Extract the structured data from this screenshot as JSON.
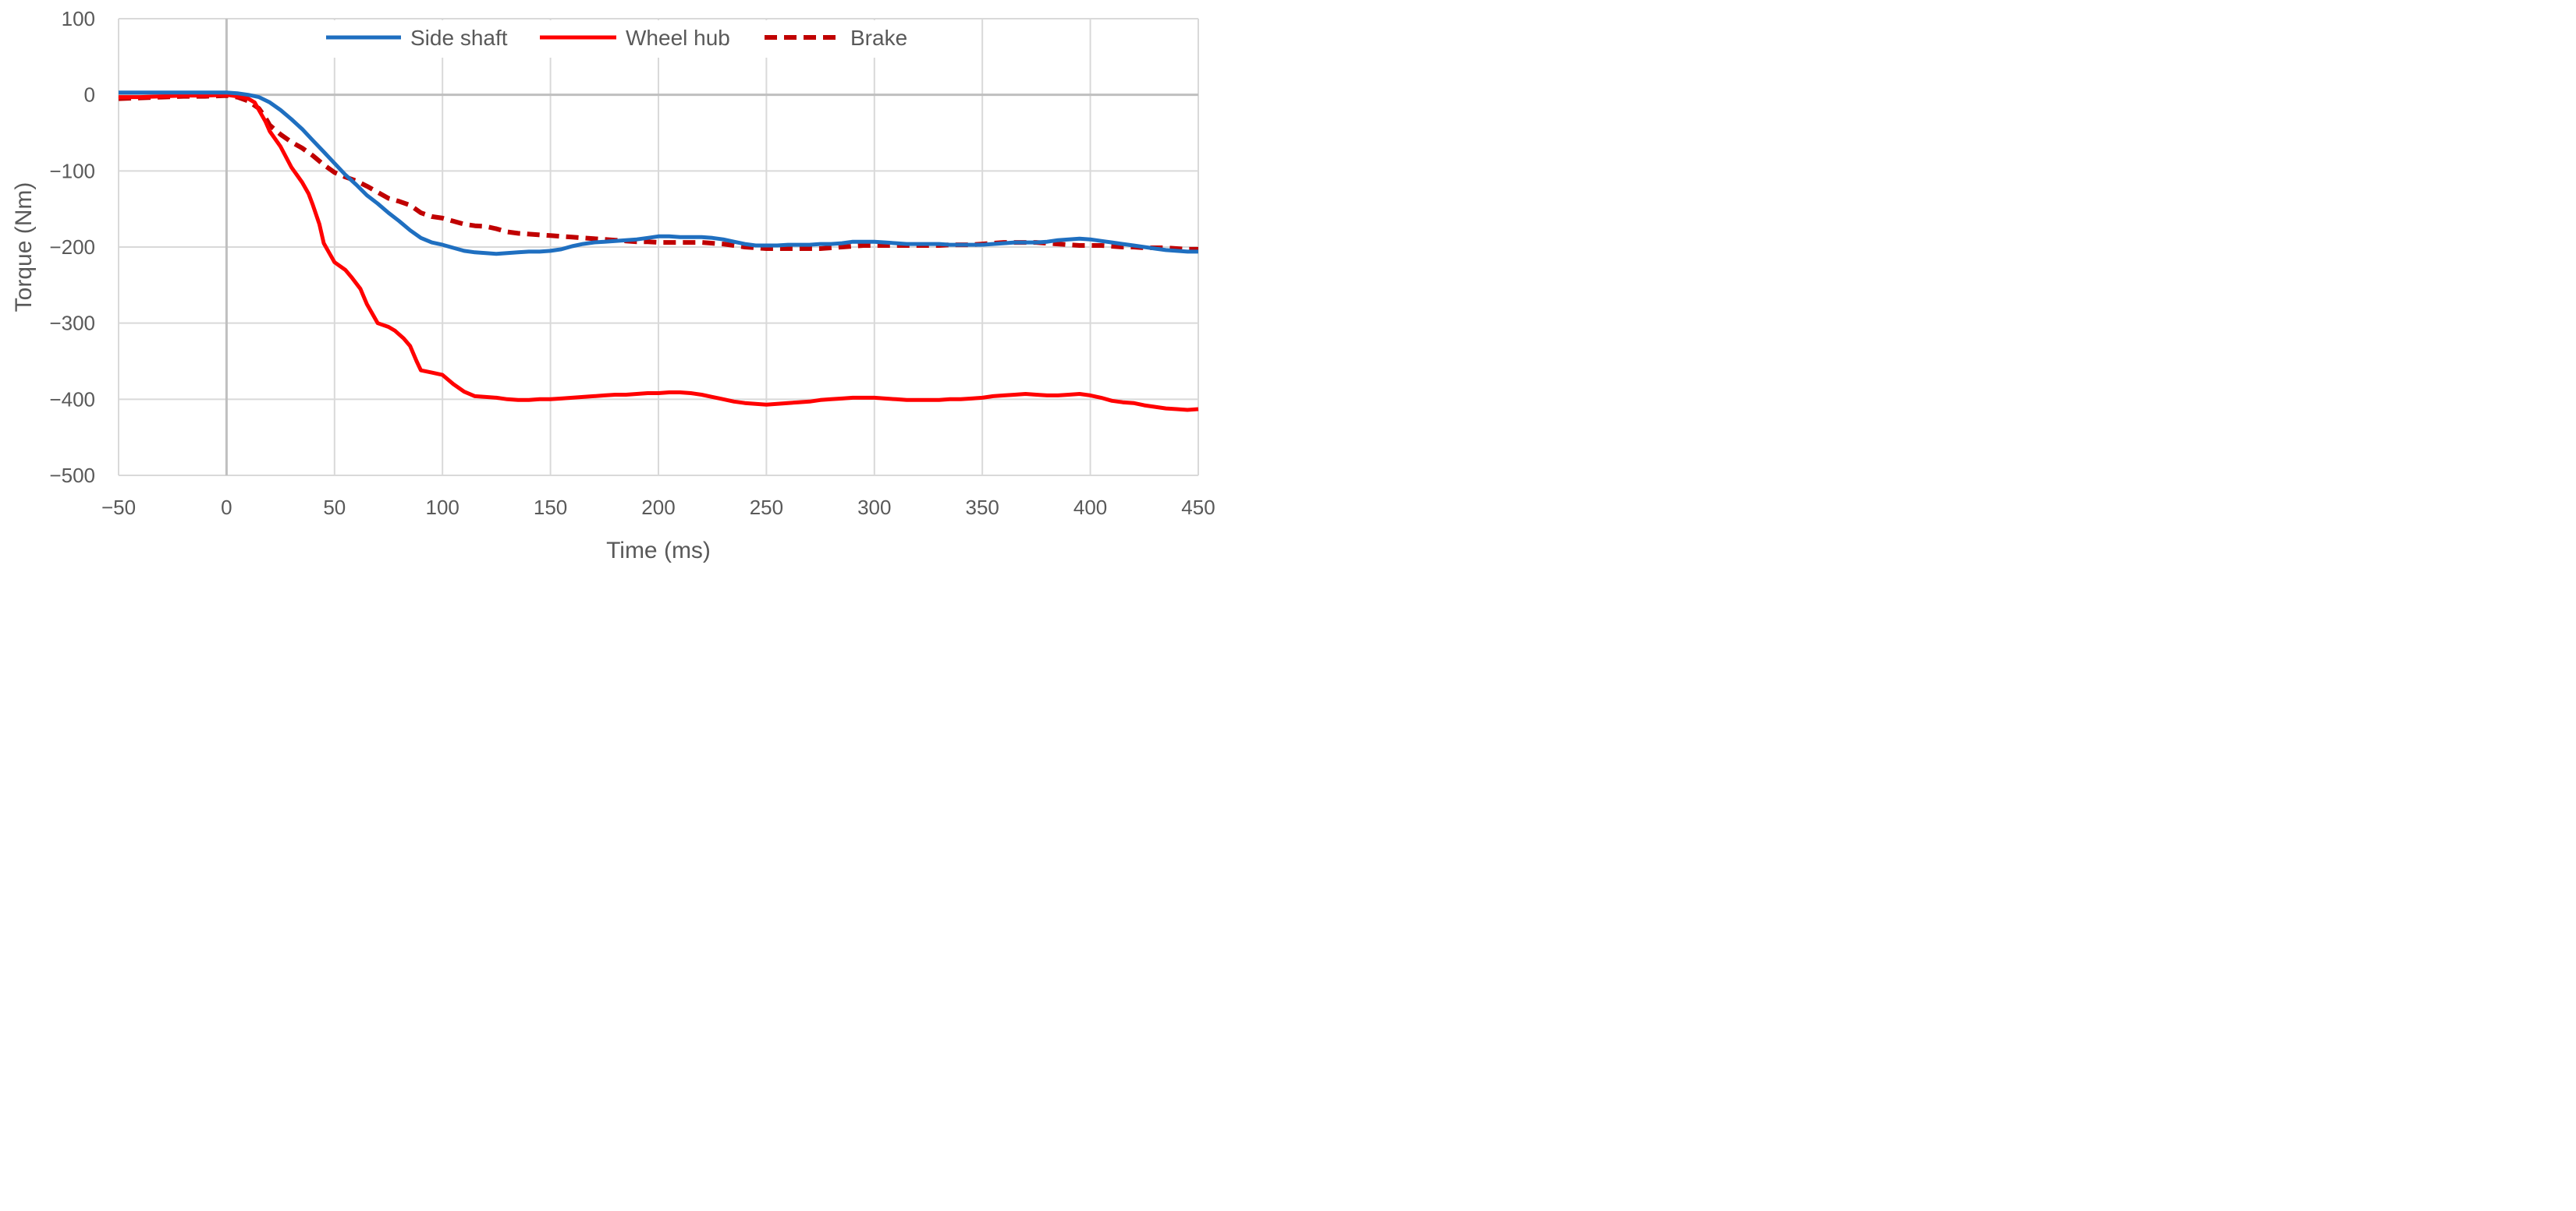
{
  "chart_data": {
    "type": "line",
    "xlabel": "Time (ms)",
    "ylabel": "Torque (Nm)",
    "xlim": [
      -50,
      450
    ],
    "ylim": [
      -500,
      100
    ],
    "x_ticks": [
      -50,
      0,
      50,
      100,
      150,
      200,
      250,
      300,
      350,
      400,
      450
    ],
    "y_ticks": [
      -500,
      -400,
      -300,
      -200,
      -100,
      0,
      100
    ],
    "x_tick_labels": [
      "−50",
      "0",
      "50",
      "100",
      "150",
      "200",
      "250",
      "300",
      "350",
      "400",
      "450"
    ],
    "y_tick_labels": [
      "−500",
      "−400",
      "−300",
      "−200",
      "−100",
      "0",
      "100"
    ],
    "grid": true,
    "legend_position": "top-center",
    "series": [
      {
        "name": "Side shaft",
        "color": "#1f6fc0",
        "dash": "solid",
        "points": [
          [
            -50,
            3
          ],
          [
            -40,
            3
          ],
          [
            -30,
            3
          ],
          [
            -20,
            3
          ],
          [
            -10,
            3
          ],
          [
            0,
            3
          ],
          [
            5,
            2
          ],
          [
            10,
            0
          ],
          [
            15,
            -3
          ],
          [
            20,
            -10
          ],
          [
            25,
            -20
          ],
          [
            30,
            -32
          ],
          [
            35,
            -45
          ],
          [
            40,
            -60
          ],
          [
            45,
            -75
          ],
          [
            50,
            -90
          ],
          [
            55,
            -105
          ],
          [
            60,
            -118
          ],
          [
            65,
            -132
          ],
          [
            70,
            -143
          ],
          [
            75,
            -155
          ],
          [
            80,
            -166
          ],
          [
            85,
            -178
          ],
          [
            90,
            -188
          ],
          [
            95,
            -194
          ],
          [
            100,
            -197
          ],
          [
            105,
            -201
          ],
          [
            110,
            -205
          ],
          [
            115,
            -207
          ],
          [
            120,
            -208
          ],
          [
            125,
            -209
          ],
          [
            130,
            -208
          ],
          [
            135,
            -207
          ],
          [
            140,
            -206
          ],
          [
            145,
            -206
          ],
          [
            150,
            -205
          ],
          [
            155,
            -203
          ],
          [
            160,
            -199
          ],
          [
            165,
            -196
          ],
          [
            170,
            -194
          ],
          [
            175,
            -193
          ],
          [
            180,
            -192
          ],
          [
            185,
            -191
          ],
          [
            190,
            -190
          ],
          [
            195,
            -188
          ],
          [
            200,
            -186
          ],
          [
            205,
            -186
          ],
          [
            210,
            -187
          ],
          [
            215,
            -187
          ],
          [
            220,
            -187
          ],
          [
            225,
            -188
          ],
          [
            230,
            -190
          ],
          [
            235,
            -193
          ],
          [
            240,
            -196
          ],
          [
            245,
            -198
          ],
          [
            250,
            -198
          ],
          [
            255,
            -198
          ],
          [
            260,
            -197
          ],
          [
            265,
            -197
          ],
          [
            270,
            -197
          ],
          [
            275,
            -196
          ],
          [
            280,
            -196
          ],
          [
            285,
            -195
          ],
          [
            290,
            -193
          ],
          [
            295,
            -193
          ],
          [
            300,
            -193
          ],
          [
            305,
            -194
          ],
          [
            310,
            -195
          ],
          [
            315,
            -196
          ],
          [
            320,
            -196
          ],
          [
            325,
            -196
          ],
          [
            330,
            -196
          ],
          [
            335,
            -197
          ],
          [
            340,
            -197
          ],
          [
            345,
            -197
          ],
          [
            350,
            -197
          ],
          [
            355,
            -196
          ],
          [
            360,
            -195
          ],
          [
            365,
            -194
          ],
          [
            370,
            -194
          ],
          [
            375,
            -194
          ],
          [
            380,
            -193
          ],
          [
            385,
            -191
          ],
          [
            390,
            -190
          ],
          [
            395,
            -189
          ],
          [
            400,
            -190
          ],
          [
            405,
            -192
          ],
          [
            410,
            -194
          ],
          [
            415,
            -196
          ],
          [
            420,
            -198
          ],
          [
            425,
            -200
          ],
          [
            430,
            -202
          ],
          [
            435,
            -204
          ],
          [
            440,
            -205
          ],
          [
            445,
            -206
          ],
          [
            450,
            -206
          ]
        ]
      },
      {
        "name": "Wheel hub",
        "color": "#ff0000",
        "dash": "solid",
        "points": [
          [
            -50,
            -3
          ],
          [
            -40,
            -3
          ],
          [
            -30,
            -2
          ],
          [
            -20,
            -1
          ],
          [
            -10,
            -1
          ],
          [
            0,
            0
          ],
          [
            5,
            -2
          ],
          [
            10,
            -5
          ],
          [
            13,
            -10
          ],
          [
            15,
            -20
          ],
          [
            18,
            -35
          ],
          [
            20,
            -48
          ],
          [
            25,
            -68
          ],
          [
            30,
            -95
          ],
          [
            35,
            -115
          ],
          [
            38,
            -130
          ],
          [
            40,
            -145
          ],
          [
            43,
            -170
          ],
          [
            45,
            -195
          ],
          [
            48,
            -210
          ],
          [
            50,
            -220
          ],
          [
            55,
            -230
          ],
          [
            58,
            -240
          ],
          [
            62,
            -255
          ],
          [
            65,
            -275
          ],
          [
            68,
            -290
          ],
          [
            70,
            -300
          ],
          [
            75,
            -305
          ],
          [
            78,
            -310
          ],
          [
            82,
            -320
          ],
          [
            85,
            -330
          ],
          [
            88,
            -350
          ],
          [
            90,
            -362
          ],
          [
            95,
            -365
          ],
          [
            100,
            -368
          ],
          [
            105,
            -380
          ],
          [
            110,
            -390
          ],
          [
            115,
            -396
          ],
          [
            120,
            -397
          ],
          [
            125,
            -398
          ],
          [
            130,
            -400
          ],
          [
            135,
            -401
          ],
          [
            140,
            -401
          ],
          [
            145,
            -400
          ],
          [
            150,
            -400
          ],
          [
            155,
            -399
          ],
          [
            160,
            -398
          ],
          [
            165,
            -397
          ],
          [
            170,
            -396
          ],
          [
            175,
            -395
          ],
          [
            180,
            -394
          ],
          [
            185,
            -394
          ],
          [
            190,
            -393
          ],
          [
            195,
            -392
          ],
          [
            200,
            -392
          ],
          [
            205,
            -391
          ],
          [
            210,
            -391
          ],
          [
            215,
            -392
          ],
          [
            220,
            -394
          ],
          [
            225,
            -397
          ],
          [
            230,
            -400
          ],
          [
            235,
            -403
          ],
          [
            240,
            -405
          ],
          [
            245,
            -406
          ],
          [
            250,
            -407
          ],
          [
            255,
            -406
          ],
          [
            260,
            -405
          ],
          [
            265,
            -404
          ],
          [
            270,
            -403
          ],
          [
            275,
            -401
          ],
          [
            280,
            -400
          ],
          [
            285,
            -399
          ],
          [
            290,
            -398
          ],
          [
            295,
            -398
          ],
          [
            300,
            -398
          ],
          [
            305,
            -399
          ],
          [
            310,
            -400
          ],
          [
            315,
            -401
          ],
          [
            320,
            -401
          ],
          [
            325,
            -401
          ],
          [
            330,
            -401
          ],
          [
            335,
            -400
          ],
          [
            340,
            -400
          ],
          [
            345,
            -399
          ],
          [
            350,
            -398
          ],
          [
            355,
            -396
          ],
          [
            360,
            -395
          ],
          [
            365,
            -394
          ],
          [
            370,
            -393
          ],
          [
            375,
            -394
          ],
          [
            380,
            -395
          ],
          [
            385,
            -395
          ],
          [
            390,
            -394
          ],
          [
            395,
            -393
          ],
          [
            400,
            -395
          ],
          [
            405,
            -398
          ],
          [
            410,
            -402
          ],
          [
            415,
            -404
          ],
          [
            420,
            -405
          ],
          [
            425,
            -408
          ],
          [
            430,
            -410
          ],
          [
            435,
            -412
          ],
          [
            440,
            -413
          ],
          [
            445,
            -414
          ],
          [
            450,
            -413
          ]
        ]
      },
      {
        "name": "Brake",
        "color": "#c00000",
        "dash": "dashed",
        "points": [
          [
            -50,
            -5
          ],
          [
            -40,
            -4
          ],
          [
            -30,
            -3
          ],
          [
            -20,
            -2
          ],
          [
            -10,
            -2
          ],
          [
            0,
            -1
          ],
          [
            5,
            -3
          ],
          [
            10,
            -8
          ],
          [
            15,
            -18
          ],
          [
            18,
            -30
          ],
          [
            20,
            -40
          ],
          [
            25,
            -52
          ],
          [
            30,
            -62
          ],
          [
            35,
            -70
          ],
          [
            40,
            -80
          ],
          [
            45,
            -92
          ],
          [
            50,
            -102
          ],
          [
            55,
            -108
          ],
          [
            60,
            -113
          ],
          [
            65,
            -120
          ],
          [
            70,
            -128
          ],
          [
            75,
            -136
          ],
          [
            80,
            -140
          ],
          [
            85,
            -145
          ],
          [
            90,
            -155
          ],
          [
            95,
            -160
          ],
          [
            100,
            -162
          ],
          [
            105,
            -166
          ],
          [
            110,
            -170
          ],
          [
            115,
            -172
          ],
          [
            120,
            -173
          ],
          [
            125,
            -176
          ],
          [
            130,
            -180
          ],
          [
            135,
            -182
          ],
          [
            140,
            -183
          ],
          [
            145,
            -184
          ],
          [
            150,
            -185
          ],
          [
            155,
            -186
          ],
          [
            160,
            -187
          ],
          [
            165,
            -188
          ],
          [
            170,
            -189
          ],
          [
            175,
            -190
          ],
          [
            180,
            -191
          ],
          [
            185,
            -192
          ],
          [
            190,
            -193
          ],
          [
            195,
            -193
          ],
          [
            200,
            -194
          ],
          [
            205,
            -194
          ],
          [
            210,
            -194
          ],
          [
            215,
            -194
          ],
          [
            220,
            -194
          ],
          [
            225,
            -195
          ],
          [
            230,
            -196
          ],
          [
            235,
            -198
          ],
          [
            240,
            -200
          ],
          [
            245,
            -201
          ],
          [
            250,
            -202
          ],
          [
            255,
            -202
          ],
          [
            260,
            -202
          ],
          [
            265,
            -202
          ],
          [
            270,
            -202
          ],
          [
            275,
            -202
          ],
          [
            280,
            -201
          ],
          [
            285,
            -200
          ],
          [
            290,
            -199
          ],
          [
            295,
            -198
          ],
          [
            300,
            -198
          ],
          [
            305,
            -198
          ],
          [
            310,
            -198
          ],
          [
            315,
            -198
          ],
          [
            320,
            -198
          ],
          [
            325,
            -198
          ],
          [
            330,
            -198
          ],
          [
            335,
            -197
          ],
          [
            340,
            -197
          ],
          [
            345,
            -197
          ],
          [
            350,
            -196
          ],
          [
            355,
            -195
          ],
          [
            360,
            -194
          ],
          [
            365,
            -194
          ],
          [
            370,
            -194
          ],
          [
            375,
            -194
          ],
          [
            380,
            -195
          ],
          [
            385,
            -196
          ],
          [
            390,
            -197
          ],
          [
            395,
            -198
          ],
          [
            400,
            -198
          ],
          [
            405,
            -198
          ],
          [
            410,
            -199
          ],
          [
            415,
            -200
          ],
          [
            420,
            -200
          ],
          [
            425,
            -201
          ],
          [
            430,
            -201
          ],
          [
            435,
            -201
          ],
          [
            440,
            -202
          ],
          [
            445,
            -203
          ],
          [
            450,
            -203
          ]
        ]
      }
    ]
  }
}
